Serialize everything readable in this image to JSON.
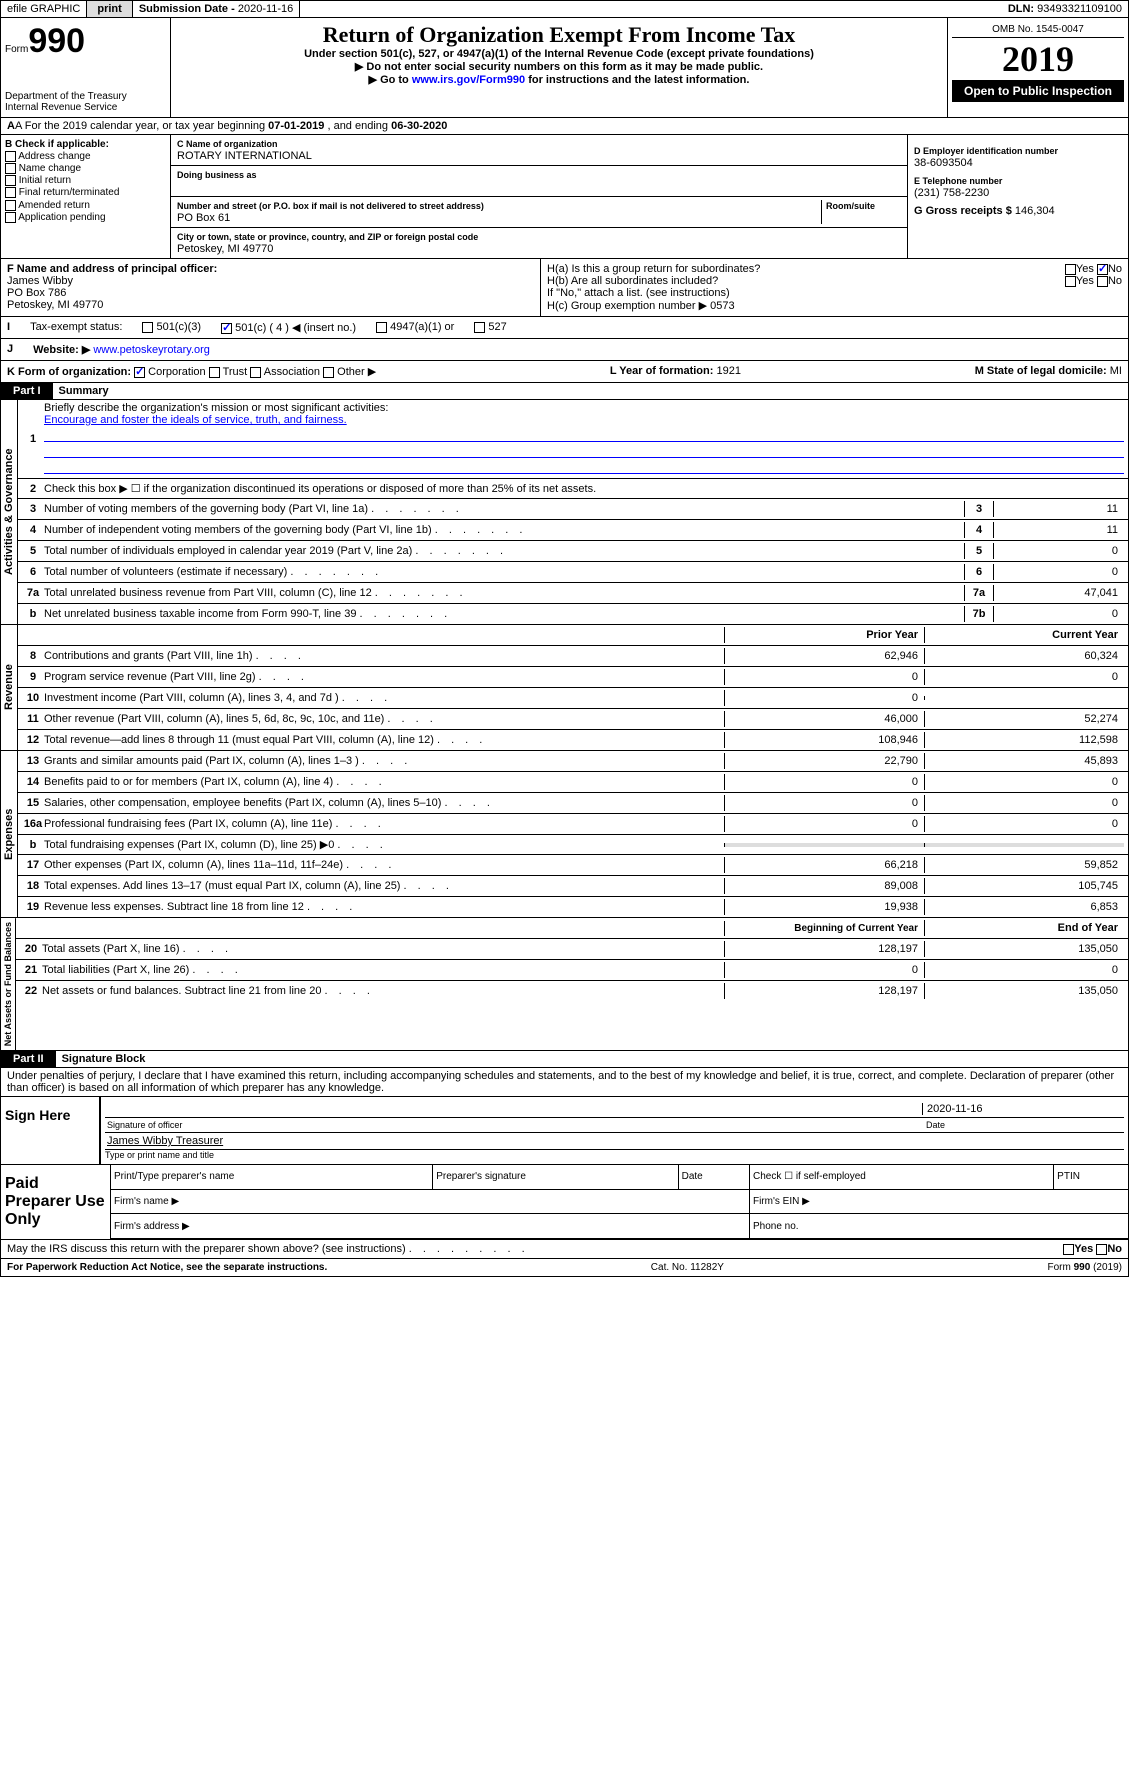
{
  "topbar": {
    "efile": "efile GRAPHIC",
    "print": "print",
    "subdate_lbl": "Submission Date - ",
    "subdate": "2020-11-16",
    "dln_lbl": "DLN: ",
    "dln": "93493321109100"
  },
  "header": {
    "form_word": "Form",
    "form_no": "990",
    "dept": "Department of the Treasury\nInternal Revenue Service",
    "title": "Return of Organization Exempt From Income Tax",
    "sub1": "Under section 501(c), 527, or 4947(a)(1) of the Internal Revenue Code (except private foundations)",
    "sub2": "▶ Do not enter social security numbers on this form as it may be made public.",
    "sub3_a": "▶ Go to ",
    "sub3_link": "www.irs.gov/Form990",
    "sub3_b": " for instructions and the latest information.",
    "omb": "OMB No. 1545-0047",
    "year": "2019",
    "open": "Open to Public Inspection"
  },
  "rowA": {
    "text": "A For the 2019 calendar year, or tax year beginning ",
    "begin": "07-01-2019",
    "mid": " , and ending ",
    "end": "06-30-2020"
  },
  "colB": {
    "hdr": "B Check if applicable:",
    "items": [
      "Address change",
      "Name change",
      "Initial return",
      "Final return/terminated",
      "Amended return",
      "Application pending"
    ]
  },
  "colC": {
    "name_lbl": "C Name of organization",
    "name": "ROTARY INTERNATIONAL",
    "dba_lbl": "Doing business as",
    "dba": "",
    "addr_lbl": "Number and street (or P.O. box if mail is not delivered to street address)",
    "room_lbl": "Room/suite",
    "addr": "PO Box 61",
    "city_lbl": "City or town, state or province, country, and ZIP or foreign postal code",
    "city": "Petoskey, MI  49770"
  },
  "colD": {
    "ein_lbl": "D Employer identification number",
    "ein": "38-6093504",
    "tel_lbl": "E Telephone number",
    "tel": "(231) 758-2230",
    "gross_lbl": "G Gross receipts $ ",
    "gross": "146,304"
  },
  "rowF": {
    "lbl": "F  Name and address of principal officer:",
    "name": "James Wibby",
    "addr1": "PO Box 786",
    "addr2": "Petoskey, MI  49770"
  },
  "rowH": {
    "a": "H(a)  Is this a group return for subordinates?",
    "b": "H(b)  Are all subordinates included?",
    "b_note": "If \"No,\" attach a list. (see instructions)",
    "c": "H(c)  Group exemption number ▶  ",
    "c_val": "0573"
  },
  "rowI": {
    "lbl": "Tax-exempt status:",
    "opts": [
      "501(c)(3)",
      "501(c) ( 4 ) ◀ (insert no.)",
      "4947(a)(1) or",
      "527"
    ]
  },
  "rowJ": {
    "lbl": "J",
    "web": "Website: ▶ ",
    "url": "www.petoskeyrotary.org"
  },
  "rowK": {
    "lbl": "K Form of organization:",
    "opts": [
      "Corporation",
      "Trust",
      "Association",
      "Other ▶"
    ],
    "yr_lbl": "L Year of formation: ",
    "yr": "1921",
    "state_lbl": "M State of legal domicile: ",
    "state": "MI"
  },
  "part1": {
    "hdr": "Part I",
    "title": "Summary"
  },
  "gov": {
    "side": "Activities & Governance",
    "l1": "Briefly describe the organization's mission or most significant activities:",
    "mission": "Encourage and foster the ideals of service, truth, and fairness.",
    "l2": "Check this box ▶ ☐  if the organization discontinued its operations or disposed of more than 25% of its net assets.",
    "lines": [
      {
        "n": "3",
        "t": "Number of voting members of the governing body (Part VI, line 1a)",
        "c": "3",
        "v": "11"
      },
      {
        "n": "4",
        "t": "Number of independent voting members of the governing body (Part VI, line 1b)",
        "c": "4",
        "v": "11"
      },
      {
        "n": "5",
        "t": "Total number of individuals employed in calendar year 2019 (Part V, line 2a)",
        "c": "5",
        "v": "0"
      },
      {
        "n": "6",
        "t": "Total number of volunteers (estimate if necessary)",
        "c": "6",
        "v": "0"
      },
      {
        "n": "7a",
        "t": "Total unrelated business revenue from Part VIII, column (C), line 12",
        "c": "7a",
        "v": "47,041"
      },
      {
        "n": "b",
        "t": "Net unrelated business taxable income from Form 990-T, line 39",
        "c": "7b",
        "v": "0"
      }
    ]
  },
  "pycy": {
    "py": "Prior Year",
    "cy": "Current Year"
  },
  "rev": {
    "side": "Revenue",
    "lines": [
      {
        "n": "8",
        "t": "Contributions and grants (Part VIII, line 1h)",
        "py": "62,946",
        "cy": "60,324"
      },
      {
        "n": "9",
        "t": "Program service revenue (Part VIII, line 2g)",
        "py": "0",
        "cy": "0"
      },
      {
        "n": "10",
        "t": "Investment income (Part VIII, column (A), lines 3, 4, and 7d )",
        "py": "0",
        "cy": ""
      },
      {
        "n": "11",
        "t": "Other revenue (Part VIII, column (A), lines 5, 6d, 8c, 9c, 10c, and 11e)",
        "py": "46,000",
        "cy": "52,274"
      },
      {
        "n": "12",
        "t": "Total revenue—add lines 8 through 11 (must equal Part VIII, column (A), line 12)",
        "py": "108,946",
        "cy": "112,598"
      }
    ]
  },
  "exp": {
    "side": "Expenses",
    "lines": [
      {
        "n": "13",
        "t": "Grants and similar amounts paid (Part IX, column (A), lines 1–3 )",
        "py": "22,790",
        "cy": "45,893"
      },
      {
        "n": "14",
        "t": "Benefits paid to or for members (Part IX, column (A), line 4)",
        "py": "0",
        "cy": "0"
      },
      {
        "n": "15",
        "t": "Salaries, other compensation, employee benefits (Part IX, column (A), lines 5–10)",
        "py": "0",
        "cy": "0"
      },
      {
        "n": "16a",
        "t": "Professional fundraising fees (Part IX, column (A), line 11e)",
        "py": "0",
        "cy": "0"
      },
      {
        "n": "b",
        "t": "Total fundraising expenses (Part IX, column (D), line 25) ▶0",
        "py": "",
        "cy": "",
        "shade": true
      },
      {
        "n": "17",
        "t": "Other expenses (Part IX, column (A), lines 11a–11d, 11f–24e)",
        "py": "66,218",
        "cy": "59,852"
      },
      {
        "n": "18",
        "t": "Total expenses. Add lines 13–17 (must equal Part IX, column (A), line 25)",
        "py": "89,008",
        "cy": "105,745"
      },
      {
        "n": "19",
        "t": "Revenue less expenses. Subtract line 18 from line 12",
        "py": "19,938",
        "cy": "6,853"
      }
    ]
  },
  "bcy": {
    "py": "Beginning of Current Year",
    "cy": "End of Year"
  },
  "net": {
    "side": "Net Assets or Fund Balances",
    "lines": [
      {
        "n": "20",
        "t": "Total assets (Part X, line 16)",
        "py": "128,197",
        "cy": "135,050"
      },
      {
        "n": "21",
        "t": "Total liabilities (Part X, line 26)",
        "py": "0",
        "cy": "0"
      },
      {
        "n": "22",
        "t": "Net assets or fund balances. Subtract line 21 from line 20",
        "py": "128,197",
        "cy": "135,050"
      }
    ]
  },
  "part2": {
    "hdr": "Part II",
    "title": "Signature Block"
  },
  "perjury": "Under penalties of perjury, I declare that I have examined this return, including accompanying schedules and statements, and to the best of my knowledge and belief, it is true, correct, and complete. Declaration of preparer (other than officer) is based on all information of which preparer has any knowledge.",
  "sign": {
    "here": "Sign Here",
    "sig_lbl": "Signature of officer",
    "date_lbl": "Date",
    "date": "2020-11-16",
    "name": "James Wibby  Treasurer",
    "name_lbl": "Type or print name and title"
  },
  "prep": {
    "hdr": "Paid Preparer Use Only",
    "c1": "Print/Type preparer's name",
    "c2": "Preparer's signature",
    "c3": "Date",
    "c4": "Check ☐ if self-employed",
    "c5": "PTIN",
    "firm_name": "Firm's name   ▶",
    "firm_ein": "Firm's EIN ▶",
    "firm_addr": "Firm's address ▶",
    "phone": "Phone no."
  },
  "discuss": "May the IRS discuss this return with the preparer shown above? (see instructions)",
  "foot": {
    "l": "For Paperwork Reduction Act Notice, see the separate instructions.",
    "c": "Cat. No. 11282Y",
    "r": "Form 990 (2019)"
  }
}
